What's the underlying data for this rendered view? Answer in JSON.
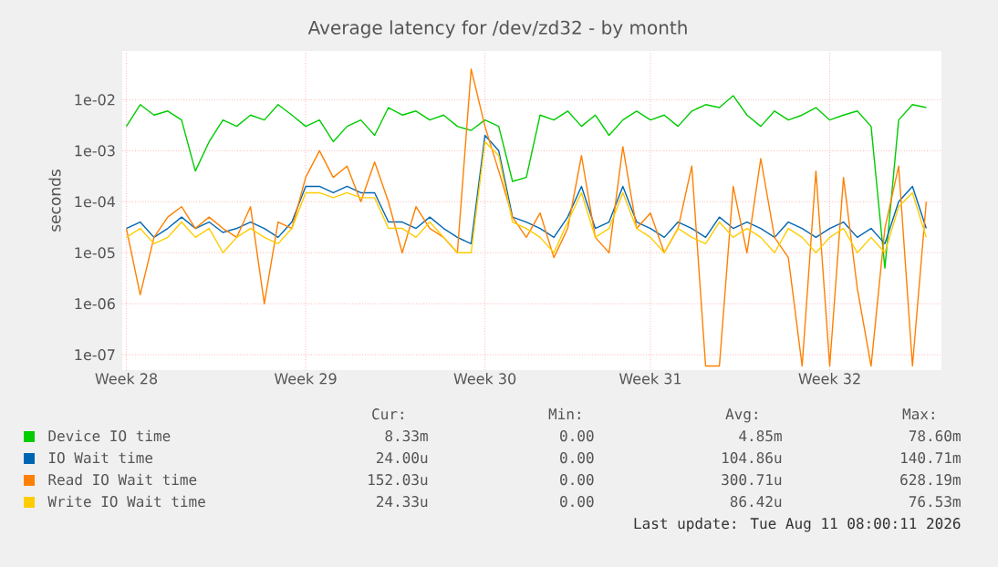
{
  "chart_data": {
    "type": "line",
    "title": "Average latency for /dev/zd32 - by month",
    "ylabel": "seconds",
    "categories": [
      "Week 28",
      null,
      null,
      null,
      null,
      null,
      null,
      null,
      null,
      null,
      null,
      null,
      null,
      "Week 29",
      null,
      null,
      null,
      null,
      null,
      null,
      null,
      null,
      null,
      null,
      null,
      null,
      "Week 30",
      null,
      null,
      null,
      null,
      null,
      null,
      null,
      null,
      null,
      null,
      null,
      "Week 31",
      null,
      null,
      null,
      null,
      null,
      null,
      null,
      null,
      null,
      null,
      null,
      null,
      "Week 32",
      null,
      null,
      null,
      null,
      null,
      null,
      null
    ],
    "series": [
      {
        "name": "Device IO time",
        "color": "#00cc00",
        "values": [
          0.003,
          0.008,
          0.005,
          0.006,
          0.004,
          0.0004,
          0.0015,
          0.004,
          0.003,
          0.005,
          0.004,
          0.008,
          0.005,
          0.003,
          0.004,
          0.0015,
          0.003,
          0.004,
          0.002,
          0.007,
          0.005,
          0.006,
          0.004,
          0.005,
          0.003,
          0.0025,
          0.004,
          0.003,
          0.00025,
          0.0003,
          0.005,
          0.004,
          0.006,
          0.003,
          0.005,
          0.002,
          0.004,
          0.006,
          0.004,
          0.005,
          0.003,
          0.006,
          0.008,
          0.007,
          0.012,
          0.005,
          0.003,
          0.006,
          0.004,
          0.005,
          0.007,
          0.004,
          0.005,
          0.006,
          0.003,
          5e-06,
          0.004,
          0.008,
          0.007
        ]
      },
      {
        "name": "IO Wait time",
        "color": "#0066b3",
        "values": [
          3e-05,
          4e-05,
          2e-05,
          3e-05,
          5e-05,
          3e-05,
          4e-05,
          2.5e-05,
          3e-05,
          4e-05,
          3e-05,
          2e-05,
          4e-05,
          0.0002,
          0.0002,
          0.00015,
          0.0002,
          0.00015,
          0.00015,
          4e-05,
          4e-05,
          3e-05,
          5e-05,
          3e-05,
          2e-05,
          1.5e-05,
          0.002,
          0.001,
          5e-05,
          4e-05,
          3e-05,
          2e-05,
          5e-05,
          0.0002,
          3e-05,
          4e-05,
          0.0002,
          4e-05,
          3e-05,
          2e-05,
          4e-05,
          3e-05,
          2e-05,
          5e-05,
          3e-05,
          4e-05,
          3e-05,
          2e-05,
          4e-05,
          3e-05,
          2e-05,
          3e-05,
          4e-05,
          2e-05,
          3e-05,
          1.5e-05,
          0.0001,
          0.0002,
          3e-05
        ]
      },
      {
        "name": "Read IO Wait time",
        "color": "#ff8000",
        "values": [
          3e-05,
          1.5e-06,
          2e-05,
          5e-05,
          8e-05,
          3e-05,
          5e-05,
          3e-05,
          2e-05,
          8e-05,
          1e-06,
          4e-05,
          3e-05,
          0.0003,
          0.001,
          0.0003,
          0.0005,
          0.0001,
          0.0006,
          0.0001,
          1e-05,
          8e-05,
          3e-05,
          2e-05,
          1e-05,
          0.04,
          0.003,
          0.0004,
          5e-05,
          2e-05,
          6e-05,
          8e-06,
          3e-05,
          0.0008,
          2e-05,
          1e-05,
          0.0012,
          3e-05,
          6e-05,
          1e-05,
          3e-05,
          0.0005,
          6e-08,
          6e-08,
          0.0002,
          1e-05,
          0.0007,
          2e-05,
          8e-06,
          6e-08,
          0.0004,
          6e-08,
          0.0003,
          2e-06,
          6e-08,
          3e-05,
          0.0005,
          6e-08,
          0.0001
        ]
      },
      {
        "name": "Write IO Wait time",
        "color": "#ffcc00",
        "values": [
          2e-05,
          3e-05,
          1.5e-05,
          2e-05,
          4e-05,
          2e-05,
          3e-05,
          1e-05,
          2e-05,
          3e-05,
          2e-05,
          1.5e-05,
          3e-05,
          0.00015,
          0.00015,
          0.00012,
          0.00015,
          0.00012,
          0.00012,
          3e-05,
          3e-05,
          2e-05,
          4e-05,
          2e-05,
          1e-05,
          1e-05,
          0.0015,
          0.0008,
          4e-05,
          3e-05,
          2e-05,
          1e-05,
          4e-05,
          0.00015,
          2e-05,
          3e-05,
          0.00015,
          3e-05,
          2e-05,
          1e-05,
          3e-05,
          2e-05,
          1.5e-05,
          4e-05,
          2e-05,
          3e-05,
          2e-05,
          1e-05,
          3e-05,
          2e-05,
          1e-05,
          2e-05,
          3e-05,
          1e-05,
          2e-05,
          1e-05,
          8e-05,
          0.00015,
          2e-05
        ]
      }
    ],
    "ylim": [
      5e-08,
      0.09
    ],
    "log": true,
    "yticks": [
      {
        "value": 1e-07,
        "label": "1e-07"
      },
      {
        "value": 1e-06,
        "label": "1e-06"
      },
      {
        "value": 1e-05,
        "label": "1e-05"
      },
      {
        "value": 0.0001,
        "label": "1e-04"
      },
      {
        "value": 0.001,
        "label": "1e-03"
      },
      {
        "value": 0.01,
        "label": "1e-02"
      }
    ],
    "grid": true,
    "legend": "bottom",
    "annotations": [
      "Cur:",
      "Min:",
      "Avg:",
      "Max:",
      "8.33m",
      "0.00",
      "4.85m",
      "78.60m",
      "24.00u",
      "0.00",
      "104.86u",
      "140.71m",
      "152.03u",
      "0.00",
      "300.71u",
      "628.19m",
      "24.33u",
      "0.00",
      "86.42u",
      "76.53m",
      "Last update: Tue Aug 11 08:00:11 2026"
    ]
  }
}
